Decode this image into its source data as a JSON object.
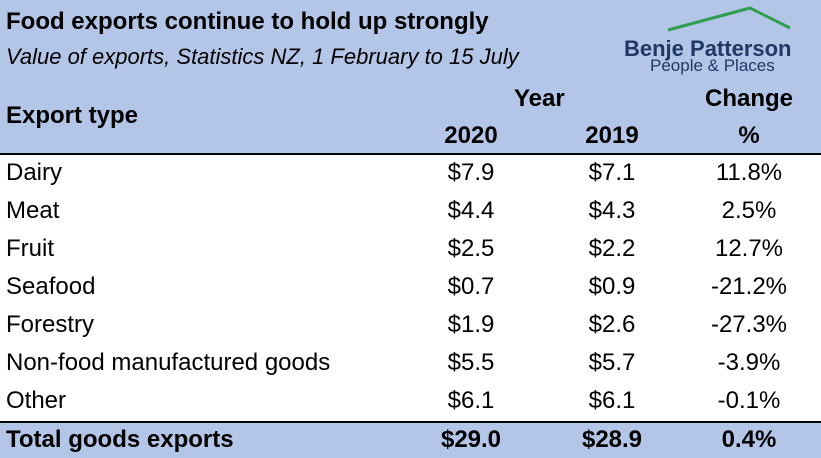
{
  "chart_data": {
    "type": "table",
    "title": "Food exports continue to hold up strongly",
    "subtitle": "Value of exports, Statistics NZ, 1 February to 15 July",
    "columns": {
      "label": "Export type",
      "group": "Year",
      "year_2020": "2020",
      "year_2019": "2019",
      "change": "Change",
      "change_unit": "%"
    },
    "rows": [
      {
        "label": "Dairy",
        "v2020": "$7.9",
        "v2019": "$7.1",
        "change": "11.8%"
      },
      {
        "label": "Meat",
        "v2020": "$4.4",
        "v2019": "$4.3",
        "change": "2.5%"
      },
      {
        "label": "Fruit",
        "v2020": "$2.5",
        "v2019": "$2.2",
        "change": "12.7%"
      },
      {
        "label": "Seafood",
        "v2020": "$0.7",
        "v2019": "$0.9",
        "change": "-21.2%"
      },
      {
        "label": "Forestry",
        "v2020": "$1.9",
        "v2019": "$2.6",
        "change": "-27.3%"
      },
      {
        "label": "Non-food manufactured goods",
        "v2020": "$5.5",
        "v2019": "$5.7",
        "change": "-3.9%"
      },
      {
        "label": "Other",
        "v2020": "$6.1",
        "v2019": "$6.1",
        "change": "-0.1%"
      }
    ],
    "total": {
      "label": "Total goods exports",
      "v2020": "$29.0",
      "v2019": "$28.9",
      "change": "0.4%"
    }
  },
  "logo": {
    "name": "Benje Patterson",
    "tagline": "People & Places"
  },
  "colors": {
    "header_bg": "#b4c6e7",
    "logo_text": "#1f3864",
    "logo_roof": "#2e9e4f"
  }
}
